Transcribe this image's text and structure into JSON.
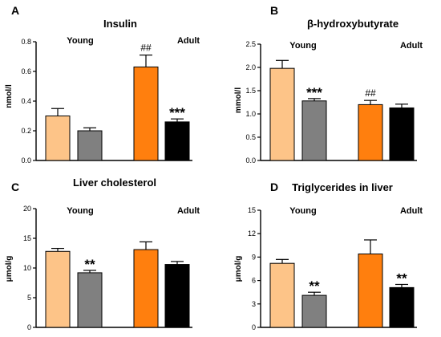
{
  "colors": {
    "young_control": "#FDC488",
    "young_treated": "#808080",
    "adult_control": "#FF7F0E",
    "adult_treated": "#000000"
  },
  "chart_data": [
    {
      "panel": "A",
      "type": "bar",
      "title": "Insulin",
      "ylabel": "nmol/l",
      "ylim": [
        0,
        0.8
      ],
      "yticks": [
        "0.0",
        "0.2",
        "0.4",
        "0.6",
        "0.8"
      ],
      "groups": [
        "Young",
        "Adult"
      ],
      "values": [
        0.3,
        0.2,
        0.63,
        0.26
      ],
      "errors": [
        0.05,
        0.02,
        0.08,
        0.02
      ],
      "annotations": [
        "",
        "",
        "##",
        "***"
      ]
    },
    {
      "panel": "B",
      "type": "bar",
      "title": "β-hydroxybutyrate",
      "ylabel": "mmol/l",
      "ylim": [
        0,
        2.5
      ],
      "yticks": [
        "0.0",
        "0.5",
        "1.0",
        "1.5",
        "2.0",
        "2.5"
      ],
      "groups": [
        "Young",
        "Adult"
      ],
      "values": [
        1.98,
        1.28,
        1.2,
        1.13
      ],
      "errors": [
        0.17,
        0.05,
        0.09,
        0.08
      ],
      "annotations": [
        "",
        "***",
        "##",
        ""
      ]
    },
    {
      "panel": "C",
      "type": "bar",
      "title": "Liver cholesterol",
      "ylabel": "μmol/g",
      "ylim": [
        0,
        20
      ],
      "yticks": [
        "0",
        "5",
        "10",
        "15",
        "20"
      ],
      "groups": [
        "Young",
        "Adult"
      ],
      "values": [
        12.8,
        9.2,
        13.1,
        10.6
      ],
      "errors": [
        0.5,
        0.4,
        1.3,
        0.5
      ],
      "annotations": [
        "",
        "**",
        "",
        ""
      ]
    },
    {
      "panel": "D",
      "type": "bar",
      "title": "Triglycerides in liver",
      "ylabel": "μmol/g",
      "ylim": [
        0,
        15
      ],
      "yticks": [
        "0",
        "3",
        "6",
        "9",
        "12",
        "15"
      ],
      "groups": [
        "Young",
        "Adult"
      ],
      "values": [
        8.2,
        4.1,
        9.4,
        5.1
      ],
      "errors": [
        0.5,
        0.4,
        1.8,
        0.4
      ],
      "annotations": [
        "",
        "**",
        "",
        "**"
      ]
    }
  ]
}
